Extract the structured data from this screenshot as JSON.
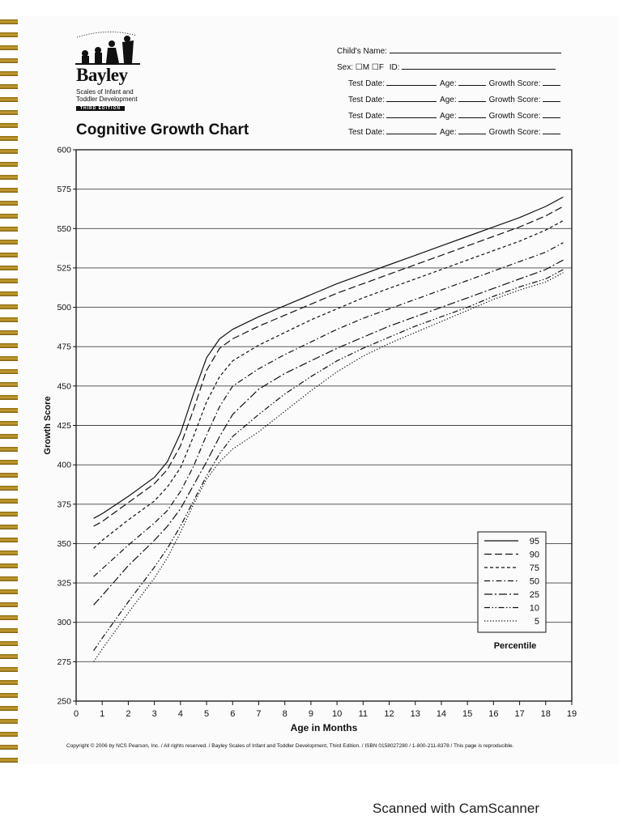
{
  "brand": {
    "name": "Bayley",
    "subtitle_line1": "Scales of Infant and",
    "subtitle_line2": "Toddler Development",
    "edition": "THIRD EDITION"
  },
  "page_title": "Cognitive Growth Chart",
  "form": {
    "childs_name_label": "Child's Name:",
    "sex_label": "Sex:",
    "sex_m": "M",
    "sex_f": "F",
    "id_label": "ID:",
    "test_date_label": "Test Date:",
    "age_label": "Age:",
    "growth_score_label": "Growth Score:",
    "test_rows": 4
  },
  "chart_data": {
    "type": "line",
    "title": "",
    "xlabel": "Age in Months",
    "ylabel": "Growth Score",
    "xlim": [
      0,
      19
    ],
    "ylim": [
      250,
      600
    ],
    "x_ticks": [
      0,
      1,
      2,
      3,
      4,
      5,
      6,
      7,
      8,
      9,
      10,
      11,
      12,
      13,
      14,
      15,
      16,
      17,
      18,
      19
    ],
    "y_ticks": [
      250,
      275,
      300,
      325,
      350,
      375,
      400,
      425,
      450,
      475,
      500,
      525,
      550,
      575,
      600
    ],
    "grid": "horizontal",
    "legend_title": "Percentile",
    "legend_position": "bottom-right",
    "x": [
      0.67,
      1,
      2,
      3,
      3.5,
      4,
      4.5,
      5,
      5.5,
      6,
      7,
      8,
      9,
      10,
      11,
      12,
      13,
      14,
      15,
      16,
      17,
      18,
      18.67
    ],
    "series": [
      {
        "name": "95",
        "dash": "solid",
        "values": [
          366,
          369,
          380,
          392,
          402,
          420,
          445,
          468,
          480,
          486,
          494,
          501,
          508,
          515,
          521,
          527,
          533,
          539,
          545,
          551,
          557,
          564,
          570
        ]
      },
      {
        "name": "90",
        "dash": "long-dash",
        "values": [
          361,
          364,
          376,
          388,
          397,
          412,
          435,
          460,
          474,
          480,
          488,
          495,
          502,
          509,
          515,
          521,
          527,
          533,
          539,
          545,
          551,
          558,
          564
        ]
      },
      {
        "name": "75",
        "dash": "short-dash",
        "values": [
          347,
          352,
          365,
          377,
          386,
          398,
          418,
          440,
          456,
          466,
          476,
          484,
          492,
          499,
          506,
          512,
          518,
          524,
          530,
          536,
          542,
          549,
          555
        ]
      },
      {
        "name": "50",
        "dash": "dash-dot",
        "values": [
          329,
          334,
          349,
          363,
          371,
          383,
          399,
          419,
          437,
          450,
          461,
          470,
          478,
          486,
          493,
          499,
          505,
          511,
          517,
          523,
          529,
          535,
          541
        ]
      },
      {
        "name": "25",
        "dash": "long-dash-dot",
        "values": [
          311,
          317,
          336,
          352,
          361,
          372,
          387,
          402,
          418,
          432,
          448,
          458,
          466,
          474,
          481,
          488,
          494,
          500,
          506,
          512,
          518,
          524,
          530
        ]
      },
      {
        "name": "10",
        "dash": "dash-dot-dot",
        "values": [
          282,
          290,
          313,
          335,
          347,
          361,
          377,
          393,
          407,
          418,
          432,
          445,
          456,
          466,
          474,
          481,
          488,
          494,
          500,
          507,
          513,
          518,
          524
        ]
      },
      {
        "name": "5",
        "dash": "dotted",
        "values": [
          275,
          283,
          306,
          328,
          341,
          357,
          375,
          391,
          402,
          410,
          421,
          434,
          447,
          459,
          469,
          477,
          484,
          491,
          498,
          505,
          511,
          516,
          522
        ]
      }
    ]
  },
  "copyright": "Copyright © 2006 by NCS Pearson, Inc. / All rights reserved. / Bayley Scales of Infant and Toddler Development, Third Edition. / ISBN 0158027280 / 1-800-211-8378 / This page is reproducible.",
  "watermark": "Scanned with CamScanner"
}
